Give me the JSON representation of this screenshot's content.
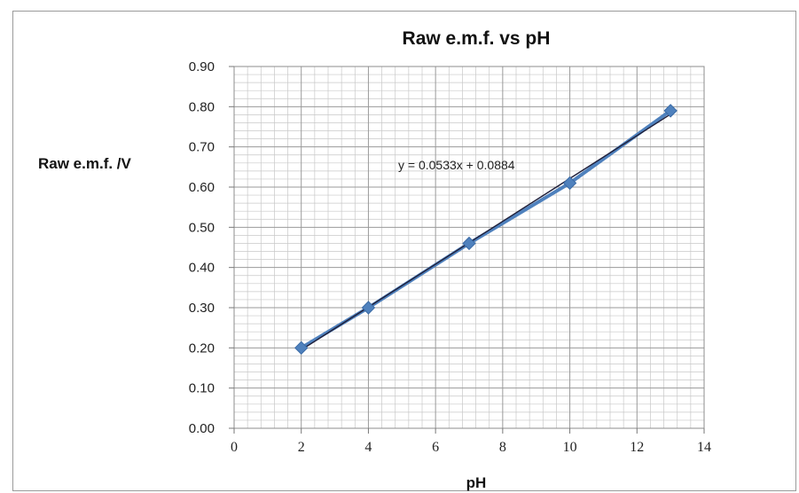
{
  "chart_data": {
    "type": "scatter",
    "title": "Raw e.m.f. vs pH",
    "xlabel": "pH",
    "ylabel": "Raw e.m.f. /V",
    "xlim": [
      0,
      14
    ],
    "ylim": [
      0.0,
      0.9
    ],
    "x_ticks": [
      "0",
      "2",
      "4",
      "6",
      "8",
      "10",
      "12",
      "14"
    ],
    "y_ticks": [
      "0.00",
      "0.10",
      "0.20",
      "0.30",
      "0.40",
      "0.50",
      "0.60",
      "0.70",
      "0.80",
      "0.90"
    ],
    "grid": true,
    "legend": "none",
    "series": [
      {
        "x": [
          2,
          4,
          7,
          10,
          13
        ],
        "y": [
          0.2,
          0.3,
          0.46,
          0.61,
          0.79
        ],
        "color": "#4f81bd",
        "marker": "diamond",
        "connected": true
      }
    ],
    "trendline": {
      "slope": 0.0533,
      "intercept": 0.0884,
      "equation": "y = 0.0533x + 0.0884",
      "color": "#1f1f3a"
    }
  }
}
